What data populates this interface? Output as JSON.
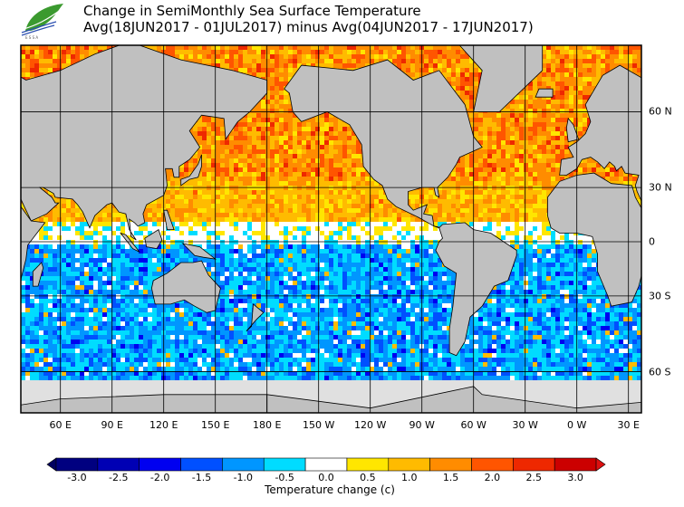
{
  "header": {
    "title": "Change in SemiMonthly Sea Surface Temperature",
    "subtitle": "Avg(18JUN2017 - 01JUL2017) minus Avg(04JUN2017 - 17JUN2017)",
    "logo_text": "ESSA"
  },
  "map": {
    "longitude_labels": [
      "60 E",
      "90 E",
      "120 E",
      "150 E",
      "180 E",
      "150 W",
      "120 W",
      "90 W",
      "60 W",
      "30 W",
      "0 W",
      "30 E"
    ],
    "latitude_labels": [
      "60 N",
      "30 N",
      "0",
      "30 S",
      "60 S"
    ],
    "land_color": "#c0c0c0",
    "sea_ice_color": "#e0e0e0"
  },
  "colorbar": {
    "title": "Temperature change  (c)",
    "labels": [
      "-3.0",
      "-2.5",
      "-2.0",
      "-1.5",
      "-1.0",
      "-0.5",
      "0.0",
      "0.5",
      "1.0",
      "1.5",
      "2.0",
      "2.5",
      "3.0"
    ],
    "colors": [
      "#000080",
      "#0000b4",
      "#0000f0",
      "#0050ff",
      "#0096ff",
      "#00dcff",
      "#ffffff",
      "#ffe600",
      "#ffbb00",
      "#ff8c00",
      "#ff5500",
      "#ee2800",
      "#cc0000"
    ],
    "under_color": "#000060",
    "over_color": "#dd1010"
  }
}
